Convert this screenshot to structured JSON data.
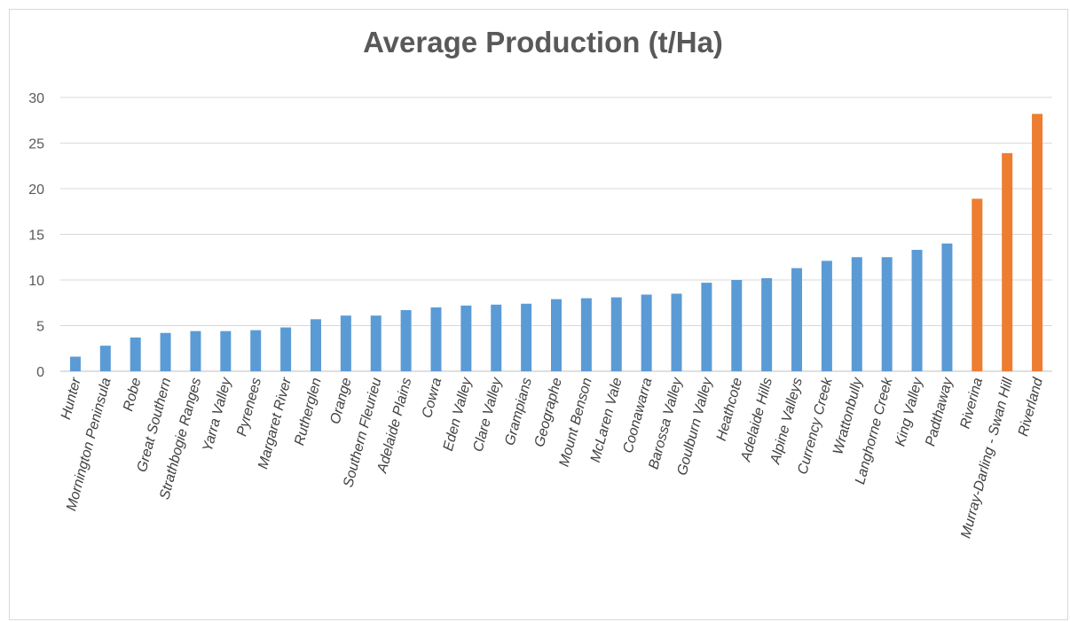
{
  "chart_data": {
    "type": "bar",
    "title": "Average Production (t/Ha)",
    "xlabel": "",
    "ylabel": "",
    "ylim": [
      0,
      30
    ],
    "yticks": [
      0,
      5,
      10,
      15,
      20,
      25,
      30
    ],
    "grid": true,
    "legend": "none",
    "colors": {
      "default": "#5b9bd5",
      "highlight": "#ed7d31",
      "grid": "#d9d9d9",
      "axis": "#bfbfbf"
    },
    "categories": [
      "Hunter",
      "Mornington Peninsula",
      "Robe",
      "Great Southern",
      "Strathbogie Ranges",
      "Yarra Valley",
      "Pyrenees",
      "Margaret River",
      "Rutherglen",
      "Orange",
      "Southern Fleurieu",
      "Adelaide Plains",
      "Cowra",
      "Eden Valley",
      "Clare Valley",
      "Grampians",
      "Geographe",
      "Mount Benson",
      "McLaren Vale",
      "Coonawarra",
      "Barossa Valley",
      "Goulburn Valley",
      "Heathcote",
      "Adelaide Hills",
      "Alpine Valleys",
      "Currency Creek",
      "Wrattonbully",
      "Langhorne Creek",
      "King Valley",
      "Padthaway",
      "Riverina",
      "Murray-Darling - Swan Hill",
      "Riverland"
    ],
    "values": [
      1.6,
      2.8,
      3.7,
      4.2,
      4.4,
      4.4,
      4.5,
      4.8,
      5.7,
      6.1,
      6.1,
      6.7,
      7.0,
      7.2,
      7.3,
      7.4,
      7.9,
      8.0,
      8.1,
      8.4,
      8.5,
      9.7,
      10.0,
      10.2,
      11.3,
      12.1,
      12.5,
      12.5,
      13.3,
      14.0,
      18.9,
      23.9,
      28.2
    ],
    "highlighted": [
      "Riverina",
      "Murray-Darling - Swan Hill",
      "Riverland"
    ]
  }
}
